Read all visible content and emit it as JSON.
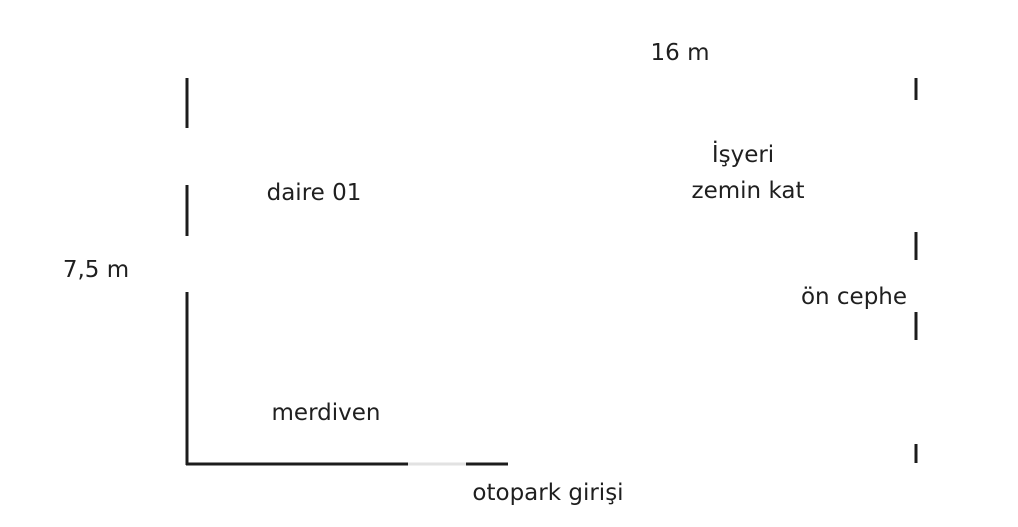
{
  "dimensions": {
    "width": "16 m",
    "depth": "7,5 m"
  },
  "rooms": {
    "apartment": "daire 01",
    "stairs": "merdiven",
    "shop_line1": "İşyeri",
    "shop_line2": "zemin kat"
  },
  "openings": {
    "parking": "otopark girişi",
    "facade": "ön cephe"
  },
  "colors": {
    "wall": "#1c1c1c",
    "faded_wall": "#b0b0b0",
    "text": "#1f1f1f"
  }
}
